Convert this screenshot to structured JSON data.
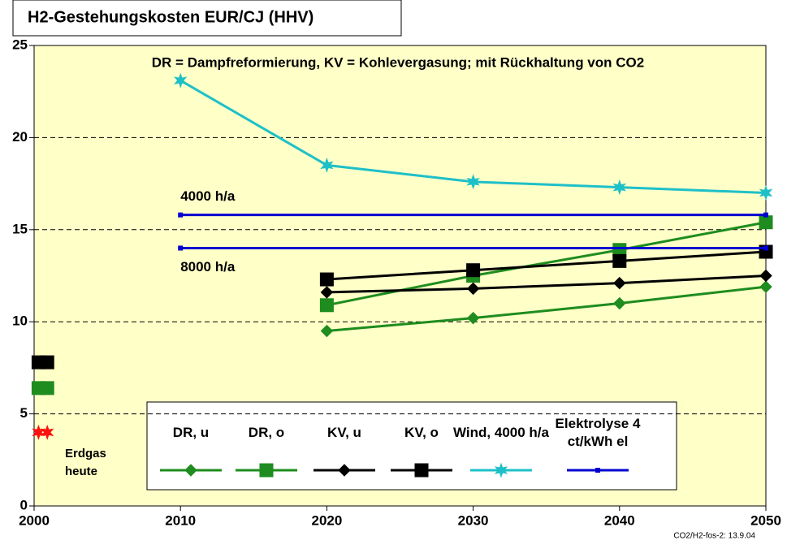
{
  "chart_data": {
    "type": "line",
    "title": "H2-Gestehungskosten EUR/CJ (HHV)",
    "annotation": "DR = Dampfreformierung, KV = Kohlevergasung; mit Rückhaltung von CO2",
    "footer": "CO2/H2-fos-2: 13.9.04",
    "xlim": [
      2000,
      2050
    ],
    "xticks": [
      2000,
      2010,
      2020,
      2030,
      2040,
      2050
    ],
    "ylim": [
      0,
      25
    ],
    "yticks": [
      0,
      5,
      10,
      15,
      20,
      25
    ],
    "grid": true,
    "background": "#ffffc8",
    "series": [
      {
        "name": "DR, u",
        "color": "#1e8c1e",
        "marker": "diamond",
        "x": [
          2020,
          2030,
          2040,
          2050
        ],
        "values": [
          9.5,
          10.2,
          11.0,
          11.9
        ]
      },
      {
        "name": "DR, o",
        "color": "#1e8c1e",
        "marker": "square",
        "x": [
          2020,
          2030,
          2040,
          2050
        ],
        "values": [
          10.9,
          12.5,
          13.9,
          15.4
        ]
      },
      {
        "name": "KV, u",
        "color": "#000000",
        "marker": "diamond",
        "x": [
          2020,
          2030,
          2040,
          2050
        ],
        "values": [
          11.6,
          11.8,
          12.1,
          12.5
        ]
      },
      {
        "name": "KV, o",
        "color": "#000000",
        "marker": "square",
        "x": [
          2020,
          2030,
          2040,
          2050
        ],
        "values": [
          12.3,
          12.8,
          13.3,
          13.8
        ]
      },
      {
        "name": "Wind, 4000 h/a",
        "color": "#1ec0c8",
        "marker": "star",
        "x": [
          2010,
          2020,
          2030,
          2040,
          2050
        ],
        "values": [
          23.1,
          18.5,
          17.6,
          17.3,
          17.0
        ]
      },
      {
        "name": "Elektrolyse 4 ct/kWh el",
        "color": "#0000d0",
        "marker": "dot",
        "x": [
          2010,
          2050
        ],
        "lines": [
          {
            "label": "4000 h/a",
            "values": [
              15.8,
              15.8
            ]
          },
          {
            "label": "8000  h/a",
            "values": [
              14.0,
              14.0
            ]
          }
        ]
      }
    ],
    "today": {
      "label": "Erdgas heute",
      "x": [
        2000.3,
        2000.9
      ],
      "points": [
        {
          "color": "#000000",
          "marker": "square",
          "values": [
            7.8,
            7.8
          ]
        },
        {
          "color": "#1e8c1e",
          "marker": "square",
          "values": [
            6.4,
            6.4
          ]
        },
        {
          "color": "#ff1010",
          "marker": "star",
          "values": [
            4.0,
            4.0
          ]
        }
      ]
    }
  }
}
